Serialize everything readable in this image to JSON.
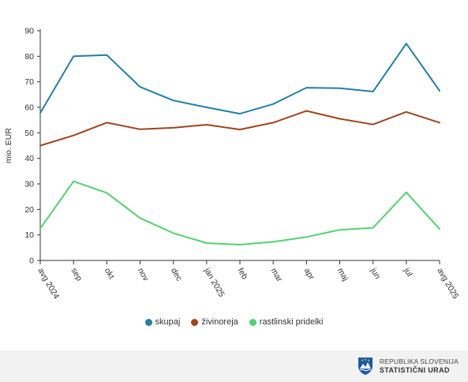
{
  "chart_data": {
    "type": "line",
    "ylabel": "mio. EUR",
    "xlabel": "",
    "ylim": [
      0,
      90
    ],
    "yticks": [
      0,
      10,
      20,
      30,
      40,
      50,
      60,
      70,
      80,
      90
    ],
    "grid": false,
    "legend_position": "bottom",
    "categories": [
      "avg 2024",
      "sep",
      "okt",
      "nov",
      "dec",
      "jan 2025",
      "feb",
      "mar",
      "apr",
      "maj",
      "jun",
      "jul",
      "avg 2025"
    ],
    "series": [
      {
        "name": "skupaj",
        "color": "#1f80a8",
        "values": [
          57.8,
          80.0,
          80.5,
          68.0,
          62.7,
          60.0,
          57.5,
          61.3,
          67.7,
          67.5,
          66.2,
          85.0,
          66.5
        ]
      },
      {
        "name": "živinoreja",
        "color": "#a0441d",
        "values": [
          45.0,
          49.0,
          54.0,
          51.4,
          52.0,
          53.2,
          51.3,
          54.0,
          58.6,
          55.5,
          53.3,
          58.2,
          54.0
        ]
      },
      {
        "name": "rastlinski pridelki",
        "color": "#4fd46c",
        "values": [
          12.5,
          31.0,
          26.5,
          16.6,
          10.7,
          6.8,
          6.2,
          7.3,
          9.2,
          12.0,
          12.8,
          26.7,
          12.3
        ]
      }
    ]
  },
  "footer": {
    "logo_line1": "REPUBLIKA SLOVENIJA",
    "logo_line2": "STATISTIČNI URAD",
    "logo_icon": "slovenia-coat-of-arms-icon"
  }
}
